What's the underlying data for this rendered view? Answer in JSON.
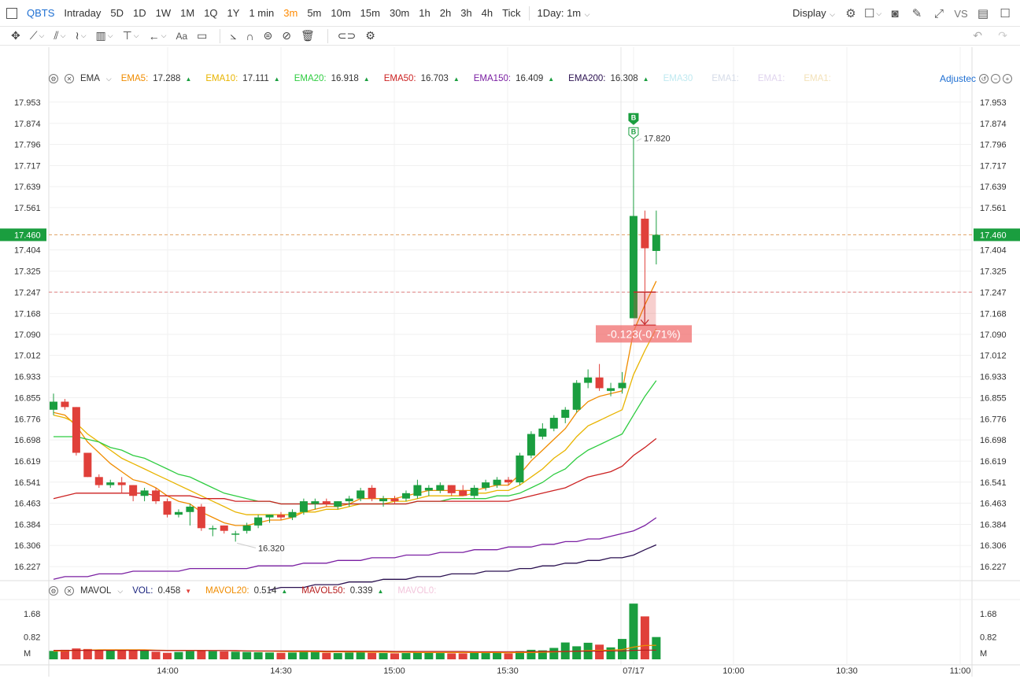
{
  "toolbar": {
    "symbol": "QBTS",
    "periods": [
      "Intraday",
      "5D",
      "1D",
      "1W",
      "1M",
      "1Q",
      "1Y",
      "1 min",
      "3m",
      "5m",
      "10m",
      "15m",
      "30m",
      "1h",
      "2h",
      "3h",
      "4h",
      "Tick"
    ],
    "active_period": "3m",
    "interval_select": "1Day: 1m",
    "display_label": "Display",
    "vs_label": "VS"
  },
  "drawing_tools": {
    "text_tool_label": "Aa"
  },
  "main_indicator": {
    "name": "EMA",
    "items": [
      {
        "label": "EMA5:",
        "value": "17.288",
        "color": "#f08c00",
        "dir": "up"
      },
      {
        "label": "EMA10:",
        "value": "17.111",
        "color": "#e8b400",
        "dir": "up"
      },
      {
        "label": "EMA20:",
        "value": "16.918",
        "color": "#2ecc40",
        "dir": "up"
      },
      {
        "label": "EMA50:",
        "value": "16.703",
        "color": "#cc2222",
        "dir": "up"
      },
      {
        "label": "EMA150:",
        "value": "16.409",
        "color": "#7a1fa2",
        "dir": "up"
      },
      {
        "label": "EMA200:",
        "value": "16.308",
        "color": "#2a1050",
        "dir": "up"
      },
      {
        "label": "EMA30",
        "value": "",
        "color": "#bfe9f0",
        "dir": ""
      },
      {
        "label": "EMA1:",
        "value": "",
        "color": "#d6dce8",
        "dir": ""
      },
      {
        "label": "EMA1:",
        "value": "",
        "color": "#e0d4ee",
        "dir": ""
      },
      {
        "label": "EMA1:",
        "value": "",
        "color": "#f3e1b8",
        "dir": ""
      }
    ],
    "adjusted_label": "Adjustec"
  },
  "volume_indicator": {
    "name": "MAVOL",
    "items": [
      {
        "label": "VOL:",
        "value": "0.458",
        "color": "#1a237e",
        "dir": "down"
      },
      {
        "label": "MAVOL20:",
        "value": "0.514",
        "color": "#f08c00",
        "dir": "up"
      },
      {
        "label": "MAVOL50:",
        "value": "0.339",
        "color": "#b71c1c",
        "dir": "up"
      },
      {
        "label": "MAVOL0:",
        "value": "",
        "color": "#f3c6dc",
        "dir": ""
      }
    ]
  },
  "price_axis": {
    "ticks": [
      "17.953",
      "17.874",
      "17.796",
      "17.717",
      "17.639",
      "17.561",
      "17.404",
      "17.325",
      "17.247",
      "17.168",
      "17.090",
      "17.012",
      "16.933",
      "16.855",
      "16.776",
      "16.698",
      "16.619",
      "16.541",
      "16.463",
      "16.384",
      "16.306",
      "16.227"
    ],
    "current_price": "17.460",
    "ref_price": "17.247"
  },
  "volume_axis": {
    "ticks": [
      "1.68",
      "0.82",
      "M"
    ]
  },
  "time_axis": {
    "ticks": [
      "14:00",
      "14:30",
      "15:00",
      "15:30",
      "07/17",
      "10:00",
      "10:30",
      "11:00"
    ]
  },
  "annotations": {
    "high_label": "17.820",
    "low_label": "16.320",
    "marker_label": "B",
    "measure_label": "-0.123(-0.71%)"
  },
  "colors": {
    "up": "#1a9e3f",
    "down": "#e0403a",
    "accent": "#ff8a00",
    "link": "#1e6fd2"
  },
  "chart_data": {
    "type": "candlestick",
    "x_start": "13:45",
    "interval_minutes": 3,
    "candles": [
      {
        "o": 16.81,
        "h": 16.87,
        "l": 16.79,
        "c": 16.84
      },
      {
        "o": 16.84,
        "h": 16.85,
        "l": 16.81,
        "c": 16.82
      },
      {
        "o": 16.82,
        "h": 16.82,
        "l": 16.64,
        "c": 16.65
      },
      {
        "o": 16.65,
        "h": 16.65,
        "l": 16.56,
        "c": 16.56
      },
      {
        "o": 16.56,
        "h": 16.57,
        "l": 16.52,
        "c": 16.53
      },
      {
        "o": 16.53,
        "h": 16.55,
        "l": 16.52,
        "c": 16.54
      },
      {
        "o": 16.54,
        "h": 16.56,
        "l": 16.5,
        "c": 16.53
      },
      {
        "o": 16.53,
        "h": 16.53,
        "l": 16.47,
        "c": 16.49
      },
      {
        "o": 16.49,
        "h": 16.52,
        "l": 16.47,
        "c": 16.51
      },
      {
        "o": 16.51,
        "h": 16.52,
        "l": 16.46,
        "c": 16.47
      },
      {
        "o": 16.47,
        "h": 16.48,
        "l": 16.41,
        "c": 16.42
      },
      {
        "o": 16.42,
        "h": 16.44,
        "l": 16.41,
        "c": 16.43
      },
      {
        "o": 16.43,
        "h": 16.46,
        "l": 16.38,
        "c": 16.45
      },
      {
        "o": 16.45,
        "h": 16.46,
        "l": 16.36,
        "c": 16.37
      },
      {
        "o": 16.37,
        "h": 16.38,
        "l": 16.34,
        "c": 16.37
      },
      {
        "o": 16.38,
        "h": 16.38,
        "l": 16.35,
        "c": 16.36
      },
      {
        "o": 16.35,
        "h": 16.36,
        "l": 16.32,
        "c": 16.35
      },
      {
        "o": 16.36,
        "h": 16.39,
        "l": 16.35,
        "c": 16.38
      },
      {
        "o": 16.38,
        "h": 16.42,
        "l": 16.37,
        "c": 16.41
      },
      {
        "o": 16.41,
        "h": 16.42,
        "l": 16.39,
        "c": 16.42
      },
      {
        "o": 16.42,
        "h": 16.43,
        "l": 16.4,
        "c": 16.41
      },
      {
        "o": 16.41,
        "h": 16.44,
        "l": 16.4,
        "c": 16.43
      },
      {
        "o": 16.43,
        "h": 16.48,
        "l": 16.42,
        "c": 16.47
      },
      {
        "o": 16.46,
        "h": 16.48,
        "l": 16.44,
        "c": 16.47
      },
      {
        "o": 16.47,
        "h": 16.48,
        "l": 16.45,
        "c": 16.46
      },
      {
        "o": 16.45,
        "h": 16.47,
        "l": 16.44,
        "c": 16.47
      },
      {
        "o": 16.47,
        "h": 16.49,
        "l": 16.45,
        "c": 16.48
      },
      {
        "o": 16.48,
        "h": 16.52,
        "l": 16.47,
        "c": 16.51
      },
      {
        "o": 16.52,
        "h": 16.53,
        "l": 16.47,
        "c": 16.48
      },
      {
        "o": 16.47,
        "h": 16.49,
        "l": 16.45,
        "c": 16.48
      },
      {
        "o": 16.48,
        "h": 16.49,
        "l": 16.46,
        "c": 16.47
      },
      {
        "o": 16.48,
        "h": 16.51,
        "l": 16.47,
        "c": 16.5
      },
      {
        "o": 16.49,
        "h": 16.55,
        "l": 16.48,
        "c": 16.53
      },
      {
        "o": 16.51,
        "h": 16.53,
        "l": 16.49,
        "c": 16.52
      },
      {
        "o": 16.51,
        "h": 16.54,
        "l": 16.5,
        "c": 16.53
      },
      {
        "o": 16.53,
        "h": 16.53,
        "l": 16.49,
        "c": 16.5
      },
      {
        "o": 16.51,
        "h": 16.53,
        "l": 16.49,
        "c": 16.49
      },
      {
        "o": 16.49,
        "h": 16.53,
        "l": 16.48,
        "c": 16.52
      },
      {
        "o": 16.52,
        "h": 16.55,
        "l": 16.51,
        "c": 16.54
      },
      {
        "o": 16.53,
        "h": 16.56,
        "l": 16.52,
        "c": 16.55
      },
      {
        "o": 16.55,
        "h": 16.56,
        "l": 16.53,
        "c": 16.54
      },
      {
        "o": 16.54,
        "h": 16.65,
        "l": 16.53,
        "c": 16.64
      },
      {
        "o": 16.64,
        "h": 16.73,
        "l": 16.63,
        "c": 16.72
      },
      {
        "o": 16.71,
        "h": 16.76,
        "l": 16.7,
        "c": 16.74
      },
      {
        "o": 16.74,
        "h": 16.79,
        "l": 16.73,
        "c": 16.78
      },
      {
        "o": 16.78,
        "h": 16.82,
        "l": 16.76,
        "c": 16.81
      },
      {
        "o": 16.81,
        "h": 16.92,
        "l": 16.8,
        "c": 16.91
      },
      {
        "o": 16.91,
        "h": 16.96,
        "l": 16.89,
        "c": 16.93
      },
      {
        "o": 16.93,
        "h": 16.98,
        "l": 16.88,
        "c": 16.89
      },
      {
        "o": 16.88,
        "h": 16.91,
        "l": 16.86,
        "c": 16.89
      },
      {
        "o": 16.89,
        "h": 16.95,
        "l": 16.87,
        "c": 16.91
      },
      {
        "o": 17.15,
        "h": 17.82,
        "l": 17.15,
        "c": 17.53
      },
      {
        "o": 17.52,
        "h": 17.55,
        "l": 17.25,
        "c": 17.41
      },
      {
        "o": 17.4,
        "h": 17.55,
        "l": 17.35,
        "c": 17.46
      }
    ],
    "volume": [
      0.31,
      0.35,
      0.4,
      0.38,
      0.36,
      0.35,
      0.34,
      0.33,
      0.32,
      0.28,
      0.24,
      0.27,
      0.3,
      0.33,
      0.3,
      0.29,
      0.28,
      0.27,
      0.26,
      0.25,
      0.24,
      0.25,
      0.3,
      0.27,
      0.24,
      0.23,
      0.25,
      0.27,
      0.24,
      0.23,
      0.22,
      0.23,
      0.25,
      0.24,
      0.23,
      0.22,
      0.22,
      0.24,
      0.23,
      0.24,
      0.22,
      0.3,
      0.35,
      0.33,
      0.42,
      0.62,
      0.48,
      0.61,
      0.54,
      0.44,
      0.75,
      2.05,
      1.58,
      0.82,
      0.458
    ],
    "ema": {
      "EMA5": [
        16.8,
        16.79,
        16.75,
        16.69,
        16.65,
        16.61,
        16.58,
        16.55,
        16.54,
        16.52,
        16.49,
        16.47,
        16.46,
        16.43,
        16.41,
        16.39,
        16.38,
        16.38,
        16.39,
        16.4,
        16.4,
        16.41,
        16.43,
        16.44,
        16.45,
        16.45,
        16.46,
        16.48,
        16.48,
        16.48,
        16.48,
        16.49,
        16.5,
        16.51,
        16.51,
        16.51,
        16.51,
        16.51,
        16.52,
        16.53,
        16.53,
        16.57,
        16.62,
        16.66,
        16.7,
        16.74,
        16.8,
        16.84,
        16.86,
        16.87,
        16.88,
        17.1,
        17.2,
        17.288
      ],
      "EMA10": [
        16.79,
        16.78,
        16.76,
        16.72,
        16.69,
        16.66,
        16.63,
        16.61,
        16.59,
        16.57,
        16.55,
        16.53,
        16.51,
        16.49,
        16.47,
        16.45,
        16.43,
        16.42,
        16.42,
        16.42,
        16.42,
        16.42,
        16.43,
        16.43,
        16.44,
        16.44,
        16.45,
        16.46,
        16.46,
        16.46,
        16.47,
        16.47,
        16.48,
        16.49,
        16.49,
        16.49,
        16.49,
        16.5,
        16.5,
        16.51,
        16.51,
        16.53,
        16.56,
        16.59,
        16.63,
        16.66,
        16.71,
        16.75,
        16.77,
        16.79,
        16.81,
        16.94,
        17.03,
        17.111
      ],
      "EMA20": [
        16.71,
        16.71,
        16.71,
        16.7,
        16.69,
        16.67,
        16.66,
        16.64,
        16.63,
        16.61,
        16.59,
        16.57,
        16.56,
        16.54,
        16.52,
        16.5,
        16.49,
        16.48,
        16.47,
        16.47,
        16.46,
        16.46,
        16.46,
        16.46,
        16.46,
        16.46,
        16.46,
        16.46,
        16.46,
        16.46,
        16.46,
        16.46,
        16.47,
        16.47,
        16.47,
        16.48,
        16.48,
        16.48,
        16.48,
        16.49,
        16.49,
        16.5,
        16.52,
        16.54,
        16.57,
        16.59,
        16.63,
        16.66,
        16.68,
        16.7,
        16.72,
        16.79,
        16.86,
        16.918
      ],
      "EMA50": [
        16.48,
        16.49,
        16.5,
        16.5,
        16.5,
        16.5,
        16.5,
        16.5,
        16.5,
        16.49,
        16.49,
        16.49,
        16.49,
        16.48,
        16.48,
        16.48,
        16.47,
        16.47,
        16.47,
        16.47,
        16.46,
        16.46,
        16.46,
        16.46,
        16.46,
        16.46,
        16.46,
        16.46,
        16.46,
        16.46,
        16.46,
        16.46,
        16.47,
        16.47,
        16.47,
        16.47,
        16.47,
        16.47,
        16.47,
        16.47,
        16.47,
        16.48,
        16.49,
        16.5,
        16.51,
        16.52,
        16.54,
        16.56,
        16.57,
        16.58,
        16.6,
        16.64,
        16.67,
        16.703
      ],
      "EMA150": [
        16.18,
        16.19,
        16.19,
        16.19,
        16.2,
        16.2,
        16.2,
        16.21,
        16.21,
        16.21,
        16.21,
        16.21,
        16.22,
        16.22,
        16.22,
        16.22,
        16.22,
        16.22,
        16.23,
        16.23,
        16.23,
        16.23,
        16.24,
        16.24,
        16.24,
        16.25,
        16.25,
        16.25,
        16.26,
        16.26,
        16.26,
        16.27,
        16.27,
        16.27,
        16.28,
        16.28,
        16.28,
        16.29,
        16.29,
        16.29,
        16.3,
        16.3,
        16.3,
        16.31,
        16.31,
        16.32,
        16.32,
        16.33,
        16.33,
        16.34,
        16.35,
        16.36,
        16.38,
        16.409
      ],
      "EMA200": [
        null,
        null,
        null,
        null,
        null,
        null,
        null,
        null,
        null,
        null,
        null,
        null,
        null,
        null,
        null,
        null,
        null,
        null,
        null,
        16.14,
        16.15,
        16.15,
        16.15,
        16.16,
        16.16,
        16.16,
        16.17,
        16.17,
        16.17,
        16.18,
        16.18,
        16.18,
        16.19,
        16.19,
        16.19,
        16.2,
        16.2,
        16.2,
        16.21,
        16.21,
        16.21,
        16.22,
        16.22,
        16.23,
        16.23,
        16.24,
        16.24,
        16.25,
        16.25,
        16.26,
        16.26,
        16.27,
        16.29,
        16.308
      ]
    },
    "mavol20": [
      0.3,
      0.31,
      0.33,
      0.34,
      0.35,
      0.35,
      0.35,
      0.35,
      0.35,
      0.34,
      0.33,
      0.33,
      0.33,
      0.33,
      0.32,
      0.32,
      0.31,
      0.31,
      0.3,
      0.3,
      0.29,
      0.28,
      0.28,
      0.28,
      0.27,
      0.27,
      0.27,
      0.27,
      0.26,
      0.26,
      0.26,
      0.26,
      0.25,
      0.25,
      0.25,
      0.25,
      0.25,
      0.25,
      0.25,
      0.25,
      0.24,
      0.25,
      0.25,
      0.26,
      0.27,
      0.29,
      0.3,
      0.32,
      0.33,
      0.34,
      0.36,
      0.45,
      0.51,
      0.514
    ],
    "mavol50": [
      0.33,
      0.33,
      0.33,
      0.33,
      0.33,
      0.33,
      0.33,
      0.33,
      0.33,
      0.33,
      0.32,
      0.32,
      0.32,
      0.32,
      0.32,
      0.32,
      0.32,
      0.31,
      0.31,
      0.31,
      0.31,
      0.31,
      0.31,
      0.31,
      0.3,
      0.3,
      0.3,
      0.3,
      0.3,
      0.3,
      0.29,
      0.29,
      0.29,
      0.29,
      0.29,
      0.29,
      0.29,
      0.28,
      0.28,
      0.28,
      0.28,
      0.28,
      0.28,
      0.29,
      0.29,
      0.29,
      0.3,
      0.3,
      0.3,
      0.31,
      0.31,
      0.33,
      0.34,
      0.339
    ],
    "measure": {
      "from": 17.247,
      "to": 17.124
    },
    "high_point": 17.82,
    "low_point": 16.32,
    "y_range": [
      16.175,
      18.005
    ],
    "volume_range": [
      0,
      2.2
    ]
  }
}
